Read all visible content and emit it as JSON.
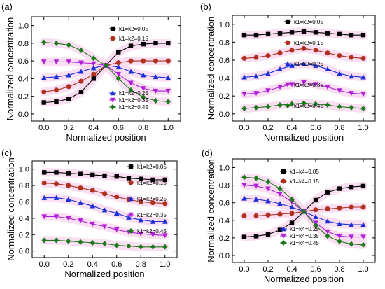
{
  "figure": {
    "xlabel": "Normalized position",
    "ylabel": "Normalized concentration"
  },
  "colors": {
    "s005": "#000000",
    "s015": "#b0301e",
    "s025": "#1a2fd6",
    "s035": "#b020d8",
    "s045": "#1c7a1c",
    "band": "#f9d8ee"
  },
  "chart_data": [
    {
      "panel": "(a)",
      "type": "line",
      "xlabel": "Normalized position",
      "ylabel": "Normalized concentration",
      "xlim": [
        -0.1,
        1.1
      ],
      "ylim": [
        -0.08,
        1.1
      ],
      "xticks": [
        "0.0",
        "0.2",
        "0.4",
        "0.6",
        "0.8",
        "1.0"
      ],
      "yticks": [
        "0.0",
        "0.2",
        "0.4",
        "0.6",
        "0.8",
        "1.0"
      ],
      "x": [
        0.0,
        0.1,
        0.2,
        0.3,
        0.4,
        0.5,
        0.6,
        0.7,
        0.8,
        0.9,
        1.0
      ],
      "series": [
        {
          "name": "k1=k2=0.05",
          "color": "s005",
          "marker": "square",
          "labelpos": "top",
          "values": [
            0.13,
            0.14,
            0.17,
            0.25,
            0.4,
            0.55,
            0.7,
            0.77,
            0.79,
            0.8,
            0.8
          ]
        },
        {
          "name": "k1=k2=0.15",
          "color": "s015",
          "marker": "circle",
          "labelpos": "top",
          "values": [
            0.25,
            0.27,
            0.31,
            0.37,
            0.45,
            0.55,
            0.58,
            0.6,
            0.6,
            0.6,
            0.6
          ]
        },
        {
          "name": "k1=k2=0.25",
          "color": "s025",
          "marker": "tri-up",
          "labelpos": "bottom",
          "values": [
            0.41,
            0.42,
            0.44,
            0.48,
            0.52,
            0.55,
            0.53,
            0.48,
            0.44,
            0.42,
            0.41
          ]
        },
        {
          "name": "k1=k2=0.35",
          "color": "s035",
          "marker": "tri-down",
          "labelpos": "bottom",
          "values": [
            0.59,
            0.59,
            0.59,
            0.58,
            0.57,
            0.55,
            0.45,
            0.35,
            0.29,
            0.26,
            0.26
          ]
        },
        {
          "name": "k1=k2=0.45",
          "color": "s045",
          "marker": "diamond",
          "labelpos": "bottom",
          "values": [
            0.81,
            0.8,
            0.78,
            0.72,
            0.63,
            0.55,
            0.4,
            0.27,
            0.19,
            0.15,
            0.14
          ]
        }
      ]
    },
    {
      "panel": "(b)",
      "type": "line",
      "xlabel": "Normalized position",
      "ylabel": "Normalized concentration",
      "xlim": [
        -0.1,
        1.1
      ],
      "ylim": [
        -0.08,
        1.1
      ],
      "xticks": [
        "0.0",
        "0.2",
        "0.4",
        "0.6",
        "0.8",
        "1.0"
      ],
      "yticks": [
        "0.0",
        "0.2",
        "0.4",
        "0.6",
        "0.8",
        "1.0"
      ],
      "x": [
        0.0,
        0.1,
        0.2,
        0.3,
        0.4,
        0.5,
        0.6,
        0.7,
        0.8,
        0.9,
        1.0
      ],
      "series": [
        {
          "name": "k1=k2=0.05",
          "color": "s005",
          "marker": "square",
          "labelpos": "top",
          "values": [
            0.88,
            0.88,
            0.89,
            0.9,
            0.91,
            0.92,
            0.91,
            0.9,
            0.89,
            0.88,
            0.88
          ]
        },
        {
          "name": "k1=k2=0.15",
          "color": "s015",
          "marker": "circle",
          "labelpos": "top",
          "values": [
            0.62,
            0.63,
            0.65,
            0.68,
            0.71,
            0.73,
            0.71,
            0.68,
            0.65,
            0.63,
            0.62
          ]
        },
        {
          "name": "k1=k2=0.25",
          "color": "s025",
          "marker": "tri-up",
          "labelpos": "top",
          "values": [
            0.41,
            0.42,
            0.45,
            0.5,
            0.54,
            0.56,
            0.54,
            0.5,
            0.45,
            0.42,
            0.41
          ]
        },
        {
          "name": "k1=k2=0.35",
          "color": "s035",
          "marker": "tri-down",
          "labelpos": "top",
          "values": [
            0.22,
            0.23,
            0.26,
            0.3,
            0.33,
            0.35,
            0.33,
            0.3,
            0.26,
            0.23,
            0.22
          ]
        },
        {
          "name": "k1=k2=0.45",
          "color": "s045",
          "marker": "diamond",
          "labelpos": "top",
          "values": [
            0.06,
            0.07,
            0.08,
            0.1,
            0.11,
            0.12,
            0.11,
            0.1,
            0.08,
            0.07,
            0.06
          ]
        }
      ]
    },
    {
      "panel": "(c)",
      "type": "line",
      "xlabel": "Normalized position",
      "ylabel": "Normalized concentration",
      "xlim": [
        -0.1,
        1.1
      ],
      "ylim": [
        -0.08,
        1.1
      ],
      "xticks": [
        "0.0",
        "0.2",
        "0.4",
        "0.6",
        "0.8",
        "1.0"
      ],
      "yticks": [
        "0.0",
        "0.2",
        "0.4",
        "0.6",
        "0.8",
        "1.0"
      ],
      "x": [
        0.0,
        0.1,
        0.2,
        0.3,
        0.4,
        0.5,
        0.6,
        0.7,
        0.8,
        0.9,
        1.0
      ],
      "series": [
        {
          "name": "k1=k2=0.05",
          "color": "s005",
          "marker": "square",
          "labelpos": "top",
          "values": [
            0.96,
            0.96,
            0.95,
            0.94,
            0.93,
            0.92,
            0.91,
            0.89,
            0.88,
            0.87,
            0.87
          ]
        },
        {
          "name": "k1=k2=0.15",
          "color": "s015",
          "marker": "circle",
          "labelpos": "top",
          "values": [
            0.83,
            0.82,
            0.8,
            0.77,
            0.74,
            0.7,
            0.66,
            0.63,
            0.6,
            0.59,
            0.58
          ]
        },
        {
          "name": "k1=k2=0.25",
          "color": "s025",
          "marker": "tri-up",
          "labelpos": "top",
          "values": [
            0.65,
            0.65,
            0.63,
            0.59,
            0.55,
            0.5,
            0.46,
            0.41,
            0.38,
            0.36,
            0.36
          ]
        },
        {
          "name": "k1=k2=0.35",
          "color": "s035",
          "marker": "tri-down",
          "labelpos": "top",
          "values": [
            0.42,
            0.42,
            0.4,
            0.37,
            0.33,
            0.3,
            0.26,
            0.23,
            0.21,
            0.2,
            0.19
          ]
        },
        {
          "name": "k1=k2=0.45",
          "color": "s045",
          "marker": "diamond",
          "labelpos": "top",
          "values": [
            0.13,
            0.13,
            0.12,
            0.11,
            0.1,
            0.09,
            0.07,
            0.06,
            0.05,
            0.05,
            0.05
          ]
        }
      ]
    },
    {
      "panel": "(d)",
      "type": "line",
      "xlabel": "Normalized position",
      "ylabel": "Normalized concentration",
      "xlim": [
        -0.1,
        1.1
      ],
      "ylim": [
        -0.08,
        1.1
      ],
      "xticks": [
        "0.0",
        "0.2",
        "0.4",
        "0.6",
        "0.8",
        "1.0"
      ],
      "yticks": [
        "0.0",
        "0.2",
        "0.4",
        "0.6",
        "0.8",
        "1.0"
      ],
      "x": [
        0.0,
        0.1,
        0.2,
        0.3,
        0.4,
        0.5,
        0.6,
        0.7,
        0.8,
        0.9,
        1.0
      ],
      "series": [
        {
          "name": "k1=k4=0.05",
          "color": "s005",
          "marker": "square",
          "labelpos": "top",
          "values": [
            0.21,
            0.22,
            0.24,
            0.29,
            0.37,
            0.5,
            0.63,
            0.72,
            0.76,
            0.78,
            0.79
          ]
        },
        {
          "name": "k1=k4=0.15",
          "color": "s015",
          "marker": "circle",
          "labelpos": "top",
          "values": [
            0.45,
            0.45,
            0.46,
            0.47,
            0.48,
            0.5,
            0.52,
            0.53,
            0.54,
            0.55,
            0.55
          ]
        },
        {
          "name": "k1=k4=0.25",
          "color": "s025",
          "marker": "tri-up",
          "labelpos": "bottom",
          "values": [
            0.65,
            0.64,
            0.62,
            0.59,
            0.55,
            0.5,
            0.44,
            0.39,
            0.36,
            0.35,
            0.35
          ]
        },
        {
          "name": "k1=k4=0.35",
          "color": "s035",
          "marker": "tri-down",
          "labelpos": "bottom",
          "values": [
            0.8,
            0.79,
            0.76,
            0.7,
            0.61,
            0.5,
            0.37,
            0.27,
            0.22,
            0.21,
            0.21
          ]
        },
        {
          "name": "k1=k4=0.45",
          "color": "s045",
          "marker": "diamond",
          "labelpos": "bottom",
          "values": [
            0.89,
            0.88,
            0.84,
            0.76,
            0.64,
            0.5,
            0.34,
            0.22,
            0.16,
            0.13,
            0.12
          ]
        }
      ]
    }
  ]
}
